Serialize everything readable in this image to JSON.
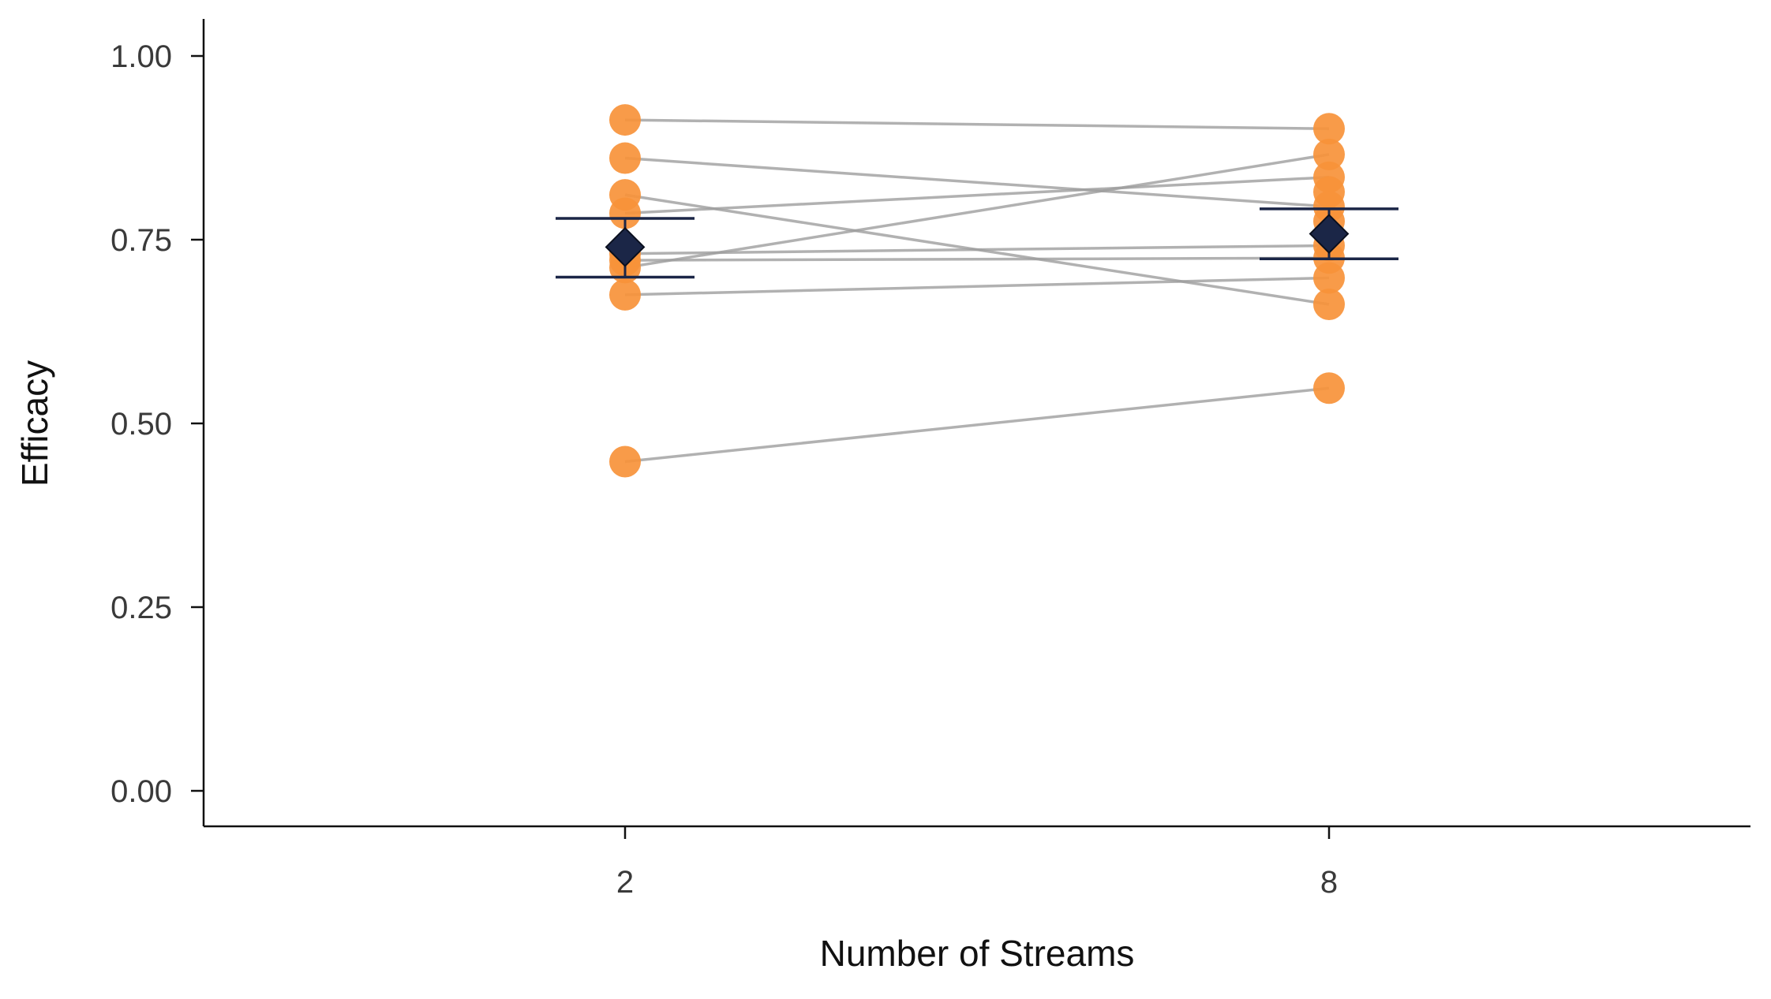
{
  "chart_data": {
    "type": "scatter",
    "subtype": "paired-dot-plot",
    "title": "",
    "xlabel": "Number of Streams",
    "ylabel": "Efficacy",
    "categories": [
      "2",
      "8"
    ],
    "ylim": [
      -0.05,
      1.05
    ],
    "yticks": [
      0.0,
      0.25,
      0.5,
      0.75,
      1.0
    ],
    "ytick_labels": [
      "0.00",
      "0.25",
      "0.50",
      "0.75",
      "1.00"
    ],
    "grid": false,
    "legend": "none",
    "colors": {
      "points": "#F7933A",
      "paired_lines": "#9E9E9E",
      "mean_marker": "#1B2647",
      "error_bars": "#1B2647",
      "axes": "#111111"
    },
    "pairs": [
      {
        "x2": 0.913,
        "x8": 0.901
      },
      {
        "x2": 0.861,
        "x8": 0.795
      },
      {
        "x2": 0.811,
        "x8": 0.662
      },
      {
        "x2": 0.786,
        "x8": 0.835
      },
      {
        "x2": 0.731,
        "x8": 0.742
      },
      {
        "x2": 0.722,
        "x8": 0.725
      },
      {
        "x2": 0.712,
        "x8": 0.866
      },
      {
        "x2": 0.675,
        "x8": 0.698
      },
      {
        "x2": 0.448,
        "x8": 0.548
      }
    ],
    "extra_points": [
      {
        "category": "8",
        "y": 0.815
      },
      {
        "category": "8",
        "y": 0.775
      }
    ],
    "summary": [
      {
        "category": "2",
        "mean": 0.74,
        "ci_low": 0.699,
        "ci_high": 0.779
      },
      {
        "category": "8",
        "mean": 0.758,
        "ci_low": 0.724,
        "ci_high": 0.792
      }
    ]
  }
}
